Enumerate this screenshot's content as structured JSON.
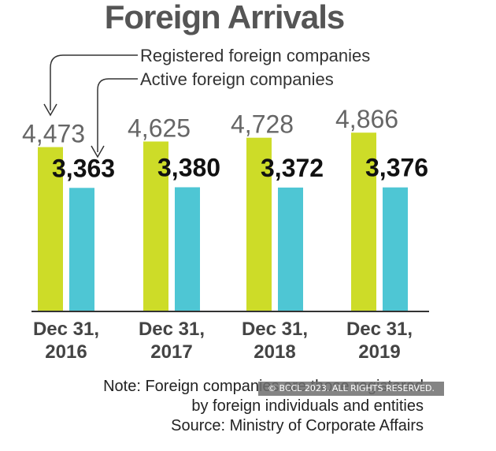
{
  "chart_data": {
    "type": "bar",
    "title": "Foreign Arrivals",
    "categories": [
      {
        "line1": "Dec 31,",
        "line2": "2016"
      },
      {
        "line1": "Dec 31,",
        "line2": "2017"
      },
      {
        "line1": "Dec 31,",
        "line2": "2018"
      },
      {
        "line1": "Dec 31,",
        "line2": "2019"
      }
    ],
    "series": [
      {
        "name": "Registered foreign companies",
        "color": "#cddc28",
        "values": [
          4473,
          4625,
          4728,
          4866
        ],
        "labels": [
          "4,473",
          "4,625",
          "4,728",
          "4,866"
        ]
      },
      {
        "name": "Active foreign companies",
        "color": "#4ec6d4",
        "values": [
          3363,
          3380,
          3372,
          3376
        ],
        "labels": [
          "3,363",
          "3,380",
          "3,372",
          "3,376"
        ]
      }
    ]
  },
  "notes": {
    "line1": "Note: Foreign companies are those registered",
    "line2": "by foreign individuals and entities",
    "source": "Source: Ministry of Corporate Affairs"
  },
  "copyright": "© BCCL 2023. ALL RIGHTS RESERVED."
}
